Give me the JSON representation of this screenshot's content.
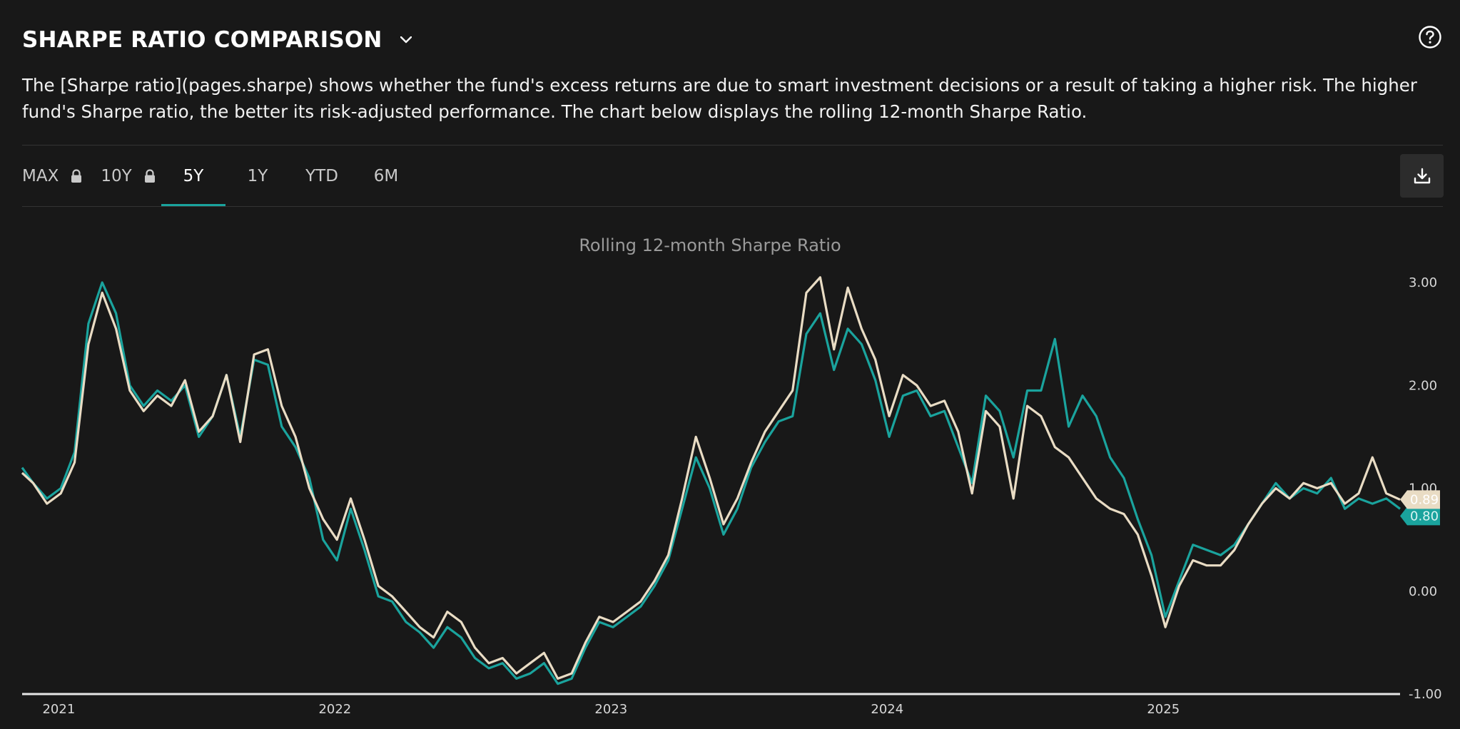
{
  "header": {
    "title": "SHARPE RATIO COMPARISON",
    "chevron_icon": "chevron-down-icon",
    "help_icon": "question-circle-icon",
    "description": "The [Sharpe ratio](pages.sharpe) shows whether the fund's excess returns are due to smart investment decisions or a result of taking a higher risk. The higher fund's Sharpe ratio, the better its risk-adjusted performance. The chart below displays the rolling 12-month Sharpe Ratio."
  },
  "tabs": [
    {
      "label": "MAX",
      "locked": true,
      "active": false
    },
    {
      "label": "10Y",
      "locked": true,
      "active": false
    },
    {
      "label": "5Y",
      "locked": false,
      "active": true
    },
    {
      "label": "1Y",
      "locked": false,
      "active": false
    },
    {
      "label": "YTD",
      "locked": false,
      "active": false
    },
    {
      "label": "6M",
      "locked": false,
      "active": false
    }
  ],
  "toolbar": {
    "download_icon": "download-icon",
    "lock_icon": "lock-icon"
  },
  "colors": {
    "series_a": "#1aa39d",
    "series_b": "#e9dcc4",
    "background": "#181818",
    "accent": "#1aa39d"
  },
  "chart_data": {
    "type": "line",
    "title": "Rolling 12-month Sharpe Ratio",
    "xlabel": "",
    "ylabel": "",
    "ylim": [
      -1,
      3
    ],
    "yticks": [
      "3.00",
      "2.00",
      "1.00",
      "0.00",
      "-1.00"
    ],
    "ytick_values": [
      3,
      2,
      1,
      0,
      -1
    ],
    "xticks": [
      "2021",
      "2022",
      "2023",
      "2024",
      "2025"
    ],
    "xtick_values": [
      2021.0,
      2022.0,
      2023.0,
      2024.0,
      2025.0
    ],
    "xlim": [
      2020.96,
      2025.95
    ],
    "grid": false,
    "series": [
      {
        "color": "#1aa39d",
        "last_value": "0.80",
        "x": [
          2020.96,
          2021.0,
          2021.05,
          2021.1,
          2021.15,
          2021.2,
          2021.25,
          2021.3,
          2021.35,
          2021.4,
          2021.45,
          2021.5,
          2021.55,
          2021.6,
          2021.65,
          2021.7,
          2021.75,
          2021.8,
          2021.85,
          2021.9,
          2021.95,
          2022.0,
          2022.05,
          2022.1,
          2022.15,
          2022.2,
          2022.25,
          2022.3,
          2022.35,
          2022.4,
          2022.45,
          2022.5,
          2022.55,
          2022.6,
          2022.65,
          2022.7,
          2022.75,
          2022.8,
          2022.85,
          2022.9,
          2022.95,
          2023.0,
          2023.05,
          2023.1,
          2023.15,
          2023.2,
          2023.25,
          2023.3,
          2023.35,
          2023.4,
          2023.45,
          2023.5,
          2023.55,
          2023.6,
          2023.65,
          2023.7,
          2023.75,
          2023.8,
          2023.85,
          2023.9,
          2023.95,
          2024.0,
          2024.05,
          2024.1,
          2024.15,
          2024.2,
          2024.25,
          2024.3,
          2024.35,
          2024.4,
          2024.45,
          2024.5,
          2024.55,
          2024.6,
          2024.65,
          2024.7,
          2024.75,
          2024.8,
          2024.85,
          2024.9,
          2024.95,
          2025.0,
          2025.05,
          2025.1,
          2025.15,
          2025.2,
          2025.25,
          2025.3,
          2025.35,
          2025.4,
          2025.45,
          2025.5,
          2025.55,
          2025.6,
          2025.65,
          2025.7,
          2025.75,
          2025.8,
          2025.85,
          2025.9,
          2025.95
        ],
        "y": [
          1.2,
          1.05,
          0.9,
          1.0,
          1.35,
          2.6,
          3.0,
          2.7,
          2.0,
          1.8,
          1.95,
          1.85,
          2.0,
          1.5,
          1.7,
          2.1,
          1.5,
          2.25,
          2.2,
          1.6,
          1.4,
          1.1,
          0.5,
          0.3,
          0.8,
          0.4,
          -0.05,
          -0.1,
          -0.3,
          -0.4,
          -0.55,
          -0.35,
          -0.45,
          -0.65,
          -0.75,
          -0.7,
          -0.85,
          -0.8,
          -0.7,
          -0.9,
          -0.85,
          -0.55,
          -0.3,
          -0.35,
          -0.25,
          -0.15,
          0.05,
          0.3,
          0.8,
          1.3,
          1.0,
          0.55,
          0.8,
          1.2,
          1.45,
          1.65,
          1.7,
          2.5,
          2.7,
          2.15,
          2.55,
          2.4,
          2.05,
          1.5,
          1.9,
          1.95,
          1.7,
          1.75,
          1.4,
          1.05,
          1.9,
          1.75,
          1.3,
          1.95,
          1.95,
          2.45,
          1.6,
          1.9,
          1.7,
          1.3,
          1.1,
          0.7,
          0.35,
          -0.25,
          0.1,
          0.45,
          0.4,
          0.35,
          0.45,
          0.65,
          0.85,
          1.05,
          0.9,
          1.0,
          0.95,
          1.1,
          0.8,
          0.9,
          0.85,
          0.9,
          0.8
        ]
      },
      {
        "color": "#e9dcc4",
        "last_value": "0.89",
        "x": [
          2020.96,
          2021.0,
          2021.05,
          2021.1,
          2021.15,
          2021.2,
          2021.25,
          2021.3,
          2021.35,
          2021.4,
          2021.45,
          2021.5,
          2021.55,
          2021.6,
          2021.65,
          2021.7,
          2021.75,
          2021.8,
          2021.85,
          2021.9,
          2021.95,
          2022.0,
          2022.05,
          2022.1,
          2022.15,
          2022.2,
          2022.25,
          2022.3,
          2022.35,
          2022.4,
          2022.45,
          2022.5,
          2022.55,
          2022.6,
          2022.65,
          2022.7,
          2022.75,
          2022.8,
          2022.85,
          2022.9,
          2022.95,
          2023.0,
          2023.05,
          2023.1,
          2023.15,
          2023.2,
          2023.25,
          2023.3,
          2023.35,
          2023.4,
          2023.45,
          2023.5,
          2023.55,
          2023.6,
          2023.65,
          2023.7,
          2023.75,
          2023.8,
          2023.85,
          2023.9,
          2023.95,
          2024.0,
          2024.05,
          2024.1,
          2024.15,
          2024.2,
          2024.25,
          2024.3,
          2024.35,
          2024.4,
          2024.45,
          2024.5,
          2024.55,
          2024.6,
          2024.65,
          2024.7,
          2024.75,
          2024.8,
          2024.85,
          2024.9,
          2024.95,
          2025.0,
          2025.05,
          2025.1,
          2025.15,
          2025.2,
          2025.25,
          2025.3,
          2025.35,
          2025.4,
          2025.45,
          2025.5,
          2025.55,
          2025.6,
          2025.65,
          2025.7,
          2025.75,
          2025.8,
          2025.85,
          2025.9,
          2025.95
        ],
        "y": [
          1.15,
          1.05,
          0.85,
          0.95,
          1.25,
          2.4,
          2.9,
          2.55,
          1.95,
          1.75,
          1.9,
          1.8,
          2.05,
          1.55,
          1.7,
          2.1,
          1.45,
          2.3,
          2.35,
          1.8,
          1.5,
          1.0,
          0.7,
          0.5,
          0.9,
          0.5,
          0.05,
          -0.05,
          -0.2,
          -0.35,
          -0.45,
          -0.2,
          -0.3,
          -0.55,
          -0.7,
          -0.65,
          -0.8,
          -0.7,
          -0.6,
          -0.85,
          -0.8,
          -0.5,
          -0.25,
          -0.3,
          -0.2,
          -0.1,
          0.1,
          0.35,
          0.9,
          1.5,
          1.1,
          0.65,
          0.9,
          1.25,
          1.55,
          1.75,
          1.95,
          2.9,
          3.05,
          2.35,
          2.95,
          2.55,
          2.25,
          1.7,
          2.1,
          2.0,
          1.8,
          1.85,
          1.55,
          0.95,
          1.75,
          1.6,
          0.9,
          1.8,
          1.7,
          1.4,
          1.3,
          1.1,
          0.9,
          0.8,
          0.75,
          0.55,
          0.15,
          -0.35,
          0.05,
          0.3,
          0.25,
          0.25,
          0.4,
          0.65,
          0.85,
          1.0,
          0.9,
          1.05,
          1.0,
          1.05,
          0.85,
          0.95,
          1.3,
          0.95,
          0.89
        ]
      }
    ]
  }
}
